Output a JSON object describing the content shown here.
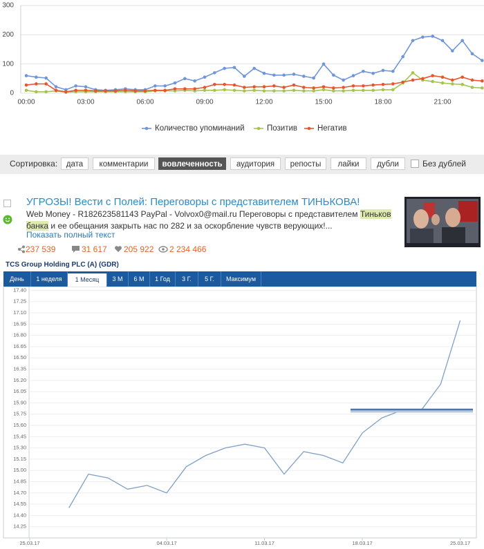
{
  "chart_data": [
    {
      "type": "line",
      "categories": [
        "00:00",
        null,
        null,
        null,
        null,
        null,
        "03:00",
        null,
        null,
        null,
        null,
        null,
        "06:00",
        null,
        null,
        null,
        null,
        null,
        "09:00",
        null,
        null,
        null,
        null,
        null,
        "12:00",
        null,
        null,
        null,
        null,
        null,
        "15:00",
        null,
        null,
        null,
        null,
        null,
        "18:00",
        null,
        null,
        null,
        null,
        null,
        "21:00",
        null,
        null,
        null,
        null
      ],
      "series": [
        {
          "name": "Количество упоминаний",
          "color": "#6f96d8",
          "values": [
            60,
            55,
            52,
            22,
            12,
            25,
            22,
            12,
            10,
            12,
            15,
            12,
            12,
            25,
            25,
            35,
            50,
            42,
            55,
            70,
            85,
            88,
            58,
            85,
            68,
            62,
            62,
            65,
            58,
            52,
            100,
            62,
            45,
            60,
            75,
            68,
            78,
            75,
            125,
            180,
            192,
            195,
            180,
            145,
            180,
            135,
            112
          ]
        },
        {
          "name": "Позитив",
          "color": "#a5c44c",
          "values": [
            10,
            5,
            5,
            8,
            3,
            5,
            5,
            5,
            5,
            5,
            5,
            5,
            5,
            8,
            8,
            8,
            10,
            8,
            10,
            10,
            12,
            10,
            8,
            10,
            8,
            8,
            8,
            10,
            8,
            8,
            12,
            8,
            8,
            10,
            10,
            10,
            12,
            12,
            35,
            70,
            45,
            40,
            35,
            32,
            30,
            20,
            18
          ]
        },
        {
          "name": "Негатив",
          "color": "#e8542c",
          "values": [
            28,
            32,
            32,
            10,
            5,
            10,
            10,
            8,
            8,
            8,
            10,
            8,
            8,
            10,
            10,
            15,
            15,
            15,
            20,
            30,
            30,
            28,
            20,
            22,
            22,
            25,
            20,
            28,
            20,
            18,
            22,
            18,
            20,
            25,
            25,
            28,
            30,
            32,
            38,
            45,
            50,
            60,
            55,
            45,
            55,
            45,
            42
          ]
        }
      ],
      "ylim": [
        0,
        300
      ],
      "yticks": [
        0,
        100,
        200,
        300
      ],
      "grid": true,
      "legend": "bottom"
    },
    {
      "type": "line",
      "title": "TCS Group Holding PLC (A) (GDR)",
      "categories": [
        "25.03.17",
        null,
        null,
        null,
        null,
        null,
        null,
        "04.03.17",
        null,
        null,
        null,
        null,
        "11.03.17",
        null,
        null,
        null,
        null,
        "18.03.17",
        null,
        null,
        null,
        null,
        "25.03.17"
      ],
      "values": [
        null,
        null,
        14.5,
        14.95,
        14.9,
        14.75,
        14.8,
        14.7,
        15.05,
        15.2,
        15.3,
        15.35,
        15.3,
        14.95,
        15.25,
        15.2,
        15.1,
        15.5,
        15.7,
        15.8,
        15.8,
        16.15,
        17.0
      ],
      "color": "#7f9fc8",
      "ylim": [
        14.1,
        17.45
      ],
      "yticks": [
        14.25,
        {
          "value": 14.4,
          "label": "14.40"
        },
        14.55,
        {
          "value": 14.7,
          "label": "14.70"
        },
        14.85,
        {
          "value": 15.0,
          "label": "15.00"
        },
        15.15,
        {
          "value": 15.3,
          "label": "15.30"
        },
        15.45,
        {
          "value": 15.6,
          "label": "15.60"
        },
        15.75,
        {
          "value": 15.9,
          "label": "15.90"
        },
        16.05,
        {
          "value": 16.2,
          "label": "16.20"
        },
        16.35,
        {
          "value": 16.5,
          "label": "16.50"
        },
        16.65,
        {
          "value": 16.8,
          "label": "16.80"
        },
        16.95,
        {
          "value": 17.1,
          "label": "17.10"
        },
        17.25,
        {
          "value": 17.4,
          "label": "17.40"
        }
      ],
      "grid": true
    }
  ],
  "sort": {
    "label": "Сортировка:",
    "options": [
      "дата",
      "комментарии",
      "вовлеченность",
      "аудитория",
      "репосты",
      "лайки",
      "дубли"
    ],
    "active": 2,
    "checkbox": "Без дублей"
  },
  "post": {
    "title": "УГРОЗЫ! Вести с Полей: Переговоры с представителем ТИНЬКОВА!",
    "text_before": "Web Money - R182623581143 PayPal - Volvox0@mail.ru Переговоры с представителем ",
    "highlight": "Тиньков банка",
    "text_after": " и ее обещания закрыть нас по 282 и за оскорбление чувств верующих!...",
    "more": "Показать полный текст",
    "stats": [
      "237 539",
      "31 617",
      "205 922",
      "2 234 466"
    ]
  },
  "stock_tabs": {
    "tabs": [
      "День",
      "1 неделя",
      "1 Месяц",
      "3 М",
      "6 М",
      "1 Год",
      "3 Г.",
      "5 Г.",
      "Максимум"
    ],
    "active": 2
  }
}
